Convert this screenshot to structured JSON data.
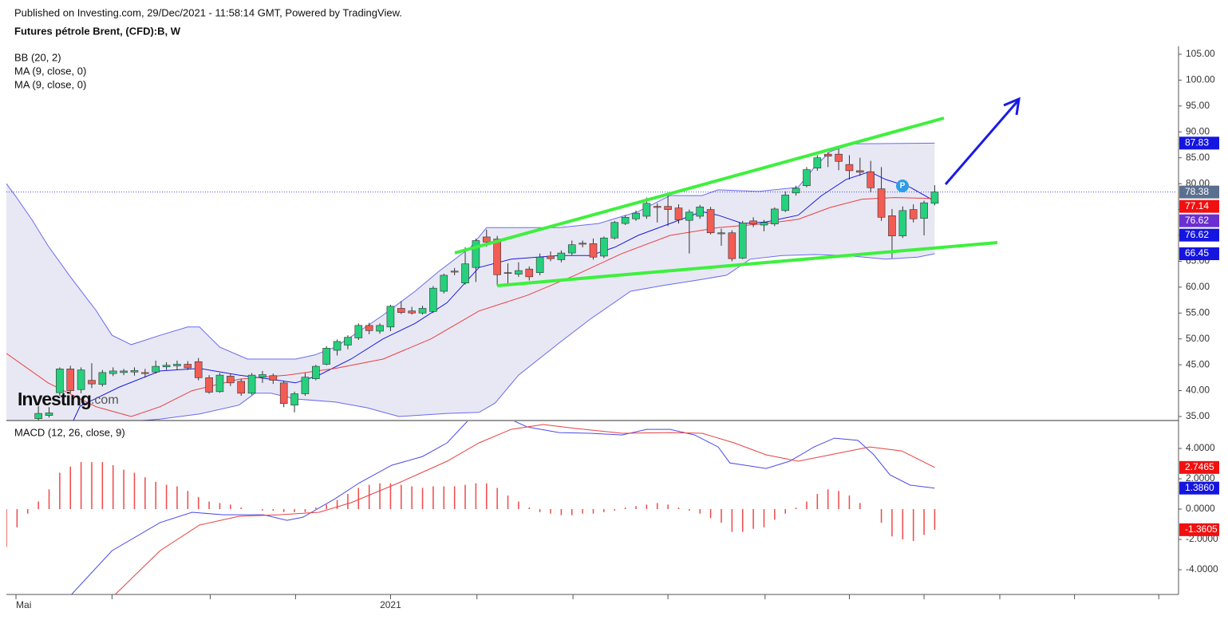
{
  "header": {
    "source": "Published on Investing.com, 29/Dec/2021 - 11:58:14 GMT, Powered by TradingView.",
    "instrument": "Futures pétrole Brent, (CFD):B, W"
  },
  "logo": {
    "name": "Investing",
    "suffix": ".com"
  },
  "chart_data": [
    {
      "type": "candlestick",
      "indicators": [
        "BB (20, 2)",
        "MA (9, close, 0)",
        "MA (9, close, 0)"
      ],
      "marker_label": "P",
      "up_color": "#26d07c",
      "down_color": "#f25c54",
      "band_fill": "#e4e4f2",
      "open": [
        null,
        null,
        null,
        34.6,
        35.2,
        39.6,
        44.2,
        40.2,
        42.0,
        41.2,
        43.3,
        43.5,
        43.6,
        43.5,
        43.6,
        44.6,
        44.8,
        45.1,
        45.6,
        42.5,
        39.8,
        42.8,
        41.8,
        39.5,
        42.6,
        42.9,
        41.5,
        37.2,
        39.4,
        42.3,
        45.1,
        47.8,
        48.8,
        50.2,
        52.6,
        51.5,
        52.3,
        55.9,
        55.4,
        55.0,
        55.3,
        59.2,
        63.1,
        60.8,
        63.8,
        69.7,
        69.3,
        62.8,
        62.5,
        63.5,
        62.8,
        66.0,
        65.3,
        66.6,
        68.5,
        68.4,
        66.0,
        69.5,
        72.3,
        73.2,
        73.7,
        75.6,
        75.6,
        75.3,
        72.9,
        73.7,
        75.0,
        70.5,
        70.5,
        65.6,
        72.8,
        72.0,
        72.2,
        74.8,
        78.2,
        79.6,
        83.0,
        85.7,
        85.7,
        83.7,
        82.5,
        82.3,
        79.0,
        73.8,
        69.9,
        75.0,
        73.3,
        76.2
      ],
      "high": [
        null,
        null,
        null,
        37.0,
        36.8,
        44.5,
        44.8,
        44.5,
        45.3,
        44.0,
        44.5,
        44.2,
        44.5,
        44.2,
        45.8,
        45.5,
        45.8,
        45.7,
        46.3,
        43.0,
        43.4,
        43.3,
        42.3,
        43.4,
        43.8,
        43.3,
        41.9,
        39.8,
        43.4,
        45.0,
        48.6,
        49.9,
        50.7,
        53.0,
        53.1,
        53.0,
        56.6,
        57.3,
        56.2,
        56.4,
        60.2,
        62.6,
        63.7,
        67.7,
        69.4,
        71.1,
        69.9,
        64.6,
        64.8,
        64.0,
        66.5,
        66.9,
        67.1,
        69.0,
        69.0,
        69.4,
        69.8,
        72.8,
        73.9,
        74.8,
        77.3,
        76.2,
        77.8,
        76.0,
        75.0,
        75.9,
        75.5,
        71.3,
        71.0,
        72.8,
        73.5,
        73.0,
        75.4,
        78.5,
        79.6,
        83.2,
        85.5,
        86.1,
        86.7,
        85.5,
        85.0,
        84.4,
        83.2,
        75.1,
        75.6,
        76.0,
        76.7,
        79.7
      ],
      "low": [
        null,
        null,
        null,
        34.2,
        34.8,
        39.0,
        39.5,
        39.5,
        40.5,
        40.8,
        42.8,
        43.0,
        42.9,
        42.5,
        43.3,
        44.0,
        44.0,
        44.0,
        42.0,
        39.4,
        39.6,
        40.9,
        39.0,
        39.2,
        41.5,
        41.3,
        36.8,
        35.8,
        39.0,
        42.0,
        44.9,
        46.8,
        48.0,
        49.8,
        50.9,
        51.0,
        51.5,
        54.8,
        54.7,
        54.7,
        55.0,
        58.8,
        62.3,
        60.5,
        61.0,
        67.8,
        60.3,
        60.2,
        62.0,
        61.3,
        62.3,
        65.0,
        64.8,
        66.2,
        67.7,
        65.3,
        65.6,
        69.2,
        72.0,
        72.8,
        73.2,
        72.5,
        71.8,
        72.3,
        66.5,
        73.2,
        70.2,
        68.0,
        65.0,
        65.4,
        71.6,
        70.8,
        71.8,
        74.5,
        77.7,
        79.3,
        82.5,
        83.2,
        82.6,
        80.8,
        81.5,
        78.3,
        72.8,
        65.6,
        69.5,
        72.5,
        70.0,
        75.8
      ],
      "close": [
        null,
        null,
        null,
        35.6,
        35.7,
        44.2,
        40.0,
        44.0,
        41.3,
        43.5,
        43.8,
        43.8,
        43.9,
        43.3,
        44.7,
        44.9,
        45.1,
        44.4,
        42.5,
        39.7,
        43.0,
        41.5,
        39.5,
        43.0,
        43.1,
        42.0,
        37.5,
        39.4,
        42.6,
        44.7,
        48.2,
        49.5,
        50.3,
        52.6,
        51.6,
        52.6,
        56.3,
        55.1,
        55.0,
        55.9,
        59.8,
        62.3,
        62.9,
        64.5,
        69.0,
        68.7,
        62.4,
        62.7,
        63.2,
        62.0,
        65.8,
        65.5,
        66.6,
        68.2,
        68.3,
        65.8,
        69.5,
        72.5,
        73.5,
        74.3,
        76.2,
        75.4,
        75.0,
        73.0,
        74.5,
        75.5,
        70.5,
        70.3,
        65.5,
        72.4,
        72.2,
        72.5,
        75.1,
        77.8,
        79.1,
        82.7,
        85.0,
        85.3,
        84.3,
        82.5,
        82.2,
        79.2,
        73.5,
        69.9,
        74.8,
        73.2,
        76.3,
        78.38
      ],
      "overlays": [
        {
          "color": "#6a6af0",
          "x": [
            0,
            0.9,
            2.4,
            3.9,
            6.0,
            8.4,
            9.9,
            11.7,
            14.4,
            17.0,
            18.1,
            20.0,
            22.6,
            27.1,
            28.9,
            30.8,
            33.1,
            35.3,
            38.3,
            40.5,
            43.5,
            45.0,
            51.8,
            55.5,
            59.2,
            62.2,
            65.2,
            66.7,
            70.5,
            74.2,
            75.7,
            77.2,
            79.4,
            87
          ],
          "values": [
            80,
            77.5,
            73,
            68,
            62,
            55.5,
            50.7,
            48.9,
            50.7,
            52.3,
            52.3,
            48.4,
            46.1,
            46.1,
            46.9,
            48.4,
            51.5,
            54.6,
            59.2,
            63,
            67.7,
            71.5,
            71.5,
            72.3,
            74.6,
            77.7,
            77.7,
            78.8,
            78.5,
            79.3,
            83.1,
            86.2,
            87.7,
            87.83
          ]
        },
        {
          "color": "#6a6af0",
          "x": [
            0,
            3.9,
            6.9,
            8.4,
            14.4,
            18.1,
            21.8,
            23.3,
            24.8,
            27.1,
            30.8,
            33.8,
            36.8,
            41.3,
            44.3,
            45.8,
            48.0,
            51.8,
            54.7,
            58.5,
            61.5,
            65.2,
            67.5,
            69.7,
            72.7,
            75.7,
            78.7,
            82.4,
            85.4,
            87
          ],
          "values": [
            24,
            27,
            31,
            33.5,
            34.5,
            35.5,
            37.2,
            39.5,
            39.5,
            38.4,
            37.8,
            36.7,
            35,
            35.6,
            35.8,
            37.6,
            43,
            49.2,
            53.8,
            59.2,
            60.3,
            61.5,
            62.3,
            65.4,
            66.1,
            66.3,
            66.1,
            65.4,
            65.8,
            66.45
          ]
        },
        {
          "color": "#1a1ae0",
          "x": [
            6.0,
            6.9,
            10.6,
            14.4,
            18.1,
            21.8,
            24.8,
            27.1,
            29.3,
            32.3,
            35.3,
            38.3,
            41.3,
            44.3,
            47.3,
            51.8,
            54.7,
            57.0,
            59.2,
            62.2,
            65.2,
            66.7,
            69.0,
            71.2,
            74.2,
            76.4,
            78.7,
            80.9,
            82.4,
            84.7,
            87
          ],
          "values": [
            33,
            37,
            40.7,
            43.8,
            44.3,
            43,
            42.2,
            41.5,
            43,
            46.1,
            50,
            53,
            57,
            63.8,
            65.4,
            66.1,
            66.1,
            67.7,
            70,
            72.3,
            74.6,
            73.9,
            72.3,
            72.6,
            73.9,
            77.7,
            80.8,
            82.3,
            80.8,
            79.3,
            76.62
          ]
        },
        {
          "color": "#e84040",
          "x": [
            0,
            3.9,
            8.4,
            11.7,
            14.4,
            17.4,
            21.8,
            26.3,
            30.8,
            35.3,
            39.8,
            44.3,
            48.8,
            53.3,
            57.7,
            62.2,
            66.7,
            71.2,
            74.2,
            77.2,
            80.2,
            83.2,
            87
          ],
          "values": [
            47.2,
            41.5,
            36.9,
            35,
            36.9,
            40,
            42.2,
            43,
            44.3,
            46.1,
            50,
            55.4,
            58.4,
            62.3,
            66.5,
            70,
            71.5,
            72.3,
            73.1,
            75.4,
            77,
            77.3,
            77.14
          ]
        }
      ],
      "price_labels": [
        {
          "value": 87.83,
          "color": "#1515e0"
        },
        {
          "value": 78.38,
          "color": "#5b6f8f",
          "dotted_line": true
        },
        {
          "value": 77.14,
          "color": "#f01010"
        },
        {
          "value": 76.62,
          "color": "#6a2fd0"
        },
        {
          "value": 76.62,
          "color": "#1515e0"
        },
        {
          "value": 66.45,
          "color": "#1515e0"
        }
      ],
      "xlim": [
        0,
        109.7
      ],
      "xticks": [
        {
          "value": 0.9,
          "label": "Mai"
        },
        {
          "value": 36.0,
          "label": "2021"
        }
      ],
      "xtick_marks": [
        9.9,
        19.1,
        27.1,
        44.1,
        53.1,
        62.0,
        71.1,
        79.0,
        86.0,
        93.1,
        100.1,
        108.0
      ],
      "ylim": [
        34.23,
        106.54
      ],
      "yticks": [
        {
          "value": 35,
          "label": "35.00"
        },
        {
          "value": 40,
          "label": "40.00"
        },
        {
          "value": 45,
          "label": "45.00"
        },
        {
          "value": 50,
          "label": "50.00"
        },
        {
          "value": 55,
          "label": "55.00"
        },
        {
          "value": 60,
          "label": "60.00"
        },
        {
          "value": 65,
          "label": "65.00"
        },
        {
          "value": 70,
          "label": "70.00"
        },
        {
          "value": 75,
          "label": "75.00"
        },
        {
          "value": 80,
          "label": "80.00"
        },
        {
          "value": 85,
          "label": "85.00"
        },
        {
          "value": 90,
          "label": "90.00"
        },
        {
          "value": 95,
          "label": "95.00"
        },
        {
          "value": 100,
          "label": "100.00"
        },
        {
          "value": 105,
          "label": "105.00"
        }
      ]
    },
    {
      "type": "macd",
      "title": "MACD (12, 26, close, 9)",
      "histogram_color": "#f04848",
      "histogram": [
        -2.5,
        -1.2,
        -0.3,
        0.5,
        1.3,
        2.4,
        2.8,
        3.1,
        3.1,
        3.1,
        2.9,
        2.6,
        2.4,
        2.1,
        1.8,
        1.6,
        1.5,
        1.2,
        0.8,
        0.5,
        0.4,
        0.3,
        0.1,
        0.0,
        -0.1,
        -0.1,
        -0.2,
        -0.2,
        -0.2,
        0.1,
        0.3,
        0.6,
        1.0,
        1.4,
        1.6,
        1.7,
        1.7,
        1.6,
        1.5,
        1.4,
        1.5,
        1.5,
        1.5,
        1.6,
        1.7,
        1.7,
        1.4,
        0.9,
        0.5,
        0.1,
        -0.2,
        -0.3,
        -0.4,
        -0.4,
        -0.3,
        -0.3,
        -0.2,
        -0.1,
        0.1,
        0.2,
        0.3,
        0.4,
        0.3,
        0.1,
        -0.1,
        -0.3,
        -0.6,
        -0.9,
        -1.5,
        -1.5,
        -1.3,
        -1.2,
        -0.7,
        -0.3,
        0.1,
        0.5,
        1.0,
        1.3,
        1.2,
        0.9,
        0.4,
        0.0,
        -0.9,
        -1.8,
        -2.0,
        -2.1,
        -1.7,
        -1.3605
      ],
      "lines": [
        {
          "color": "#4a4ae8",
          "x": [
            6.1,
            9.9,
            14.4,
            17.4,
            20.3,
            24.1,
            26.3,
            27.8,
            30.8,
            33.1,
            36.1,
            39.0,
            41.3,
            43.2,
            44.3,
            47.3,
            48.8,
            51.8,
            54.7,
            57.7,
            60.0,
            62.2,
            64.5,
            66.7,
            67.8,
            71.2,
            73.4,
            75.7,
            77.6,
            79.8,
            81.3,
            82.8,
            84.7,
            87
          ],
          "values": [
            -5.63,
            -2.74,
            -0.89,
            -0.21,
            -0.37,
            -0.37,
            -0.74,
            -0.53,
            0.68,
            1.74,
            2.89,
            3.47,
            4.37,
            5.79,
            6.2,
            5.9,
            5.42,
            5.05,
            5.0,
            4.89,
            5.26,
            5.26,
            4.89,
            4.1,
            3.05,
            2.68,
            3.16,
            4.1,
            4.68,
            4.53,
            3.58,
            2.26,
            1.58,
            1.386
          ]
        },
        {
          "color": "#e84040",
          "x": [
            10.2,
            14.4,
            18.1,
            21.8,
            25.6,
            29.3,
            32.3,
            36.8,
            41.3,
            44.3,
            47.3,
            50.3,
            53.3,
            57.7,
            62.2,
            65.2,
            68.2,
            71.2,
            74.2,
            77.2,
            80.9,
            83.9,
            87
          ],
          "values": [
            -5.63,
            -2.74,
            -1.05,
            -0.47,
            -0.37,
            -0.21,
            0.42,
            1.74,
            3.16,
            4.37,
            5.26,
            5.58,
            5.32,
            5.0,
            5.05,
            5.0,
            4.37,
            3.58,
            3.16,
            3.58,
            4.1,
            3.84,
            2.7465
          ]
        }
      ],
      "value_labels": [
        {
          "value": 2.7465,
          "color": "#f01010"
        },
        {
          "value": 1.386,
          "label": "1.3860",
          "color": "#1515e0"
        },
        {
          "value": -1.3605,
          "color": "#f01010"
        }
      ],
      "ylim": [
        -5.63,
        5.79
      ],
      "yticks": [
        {
          "value": 4,
          "label": "4.0000"
        },
        {
          "value": 2,
          "label": "2.0000"
        },
        {
          "value": 0,
          "label": "0.0000"
        },
        {
          "value": -2,
          "label": "-2.0000"
        },
        {
          "value": -4,
          "label": "-4.0000"
        }
      ]
    }
  ]
}
